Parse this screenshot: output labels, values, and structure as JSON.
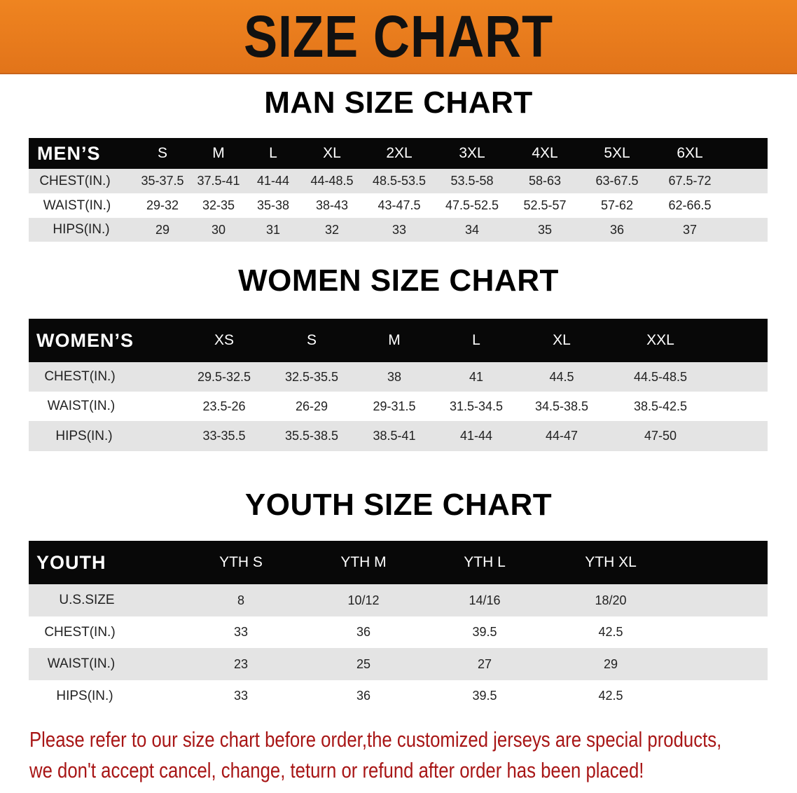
{
  "banner_title": "SIZE CHART",
  "men": {
    "title": "MAN SIZE CHART",
    "header": [
      "MEN’S",
      "S",
      "M",
      "L",
      "XL",
      "2XL",
      "3XL",
      "4XL",
      "5XL",
      "6XL"
    ],
    "rows": [
      [
        "CHEST(IN.)",
        "35-37.5",
        "37.5-41",
        "41-44",
        "44-48.5",
        "48.5-53.5",
        "53.5-58",
        "58-63",
        "63-67.5",
        "67.5-72"
      ],
      [
        "WAIST(IN.)",
        "29-32",
        "32-35",
        "35-38",
        "38-43",
        "43-47.5",
        "47.5-52.5",
        "52.5-57",
        "57-62",
        "62-66.5"
      ],
      [
        "HIPS(IN.)",
        "29",
        "30",
        "31",
        "32",
        "33",
        "34",
        "35",
        "36",
        "37"
      ]
    ]
  },
  "women": {
    "title": "WOMEN SIZE CHART",
    "header": [
      "WOMEN’S",
      "XS",
      "S",
      "M",
      "L",
      "XL",
      "XXL"
    ],
    "rows": [
      [
        "CHEST(IN.)",
        "29.5-32.5",
        "32.5-35.5",
        "38",
        "41",
        "44.5",
        "44.5-48.5"
      ],
      [
        "WAIST(IN.)",
        "23.5-26",
        "26-29",
        "29-31.5",
        "31.5-34.5",
        "34.5-38.5",
        "38.5-42.5"
      ],
      [
        "HIPS(IN.)",
        "33-35.5",
        "35.5-38.5",
        "38.5-41",
        "41-44",
        "44-47",
        "47-50"
      ]
    ]
  },
  "youth": {
    "title": "YOUTH SIZE CHART",
    "header": [
      "YOUTH",
      "YTH S",
      "YTH M",
      "YTH L",
      "YTH XL"
    ],
    "rows": [
      [
        "U.S.SIZE",
        "8",
        "10/12",
        "14/16",
        "18/20"
      ],
      [
        "CHEST(IN.)",
        "33",
        "36",
        "39.5",
        "42.5"
      ],
      [
        "WAIST(IN.)",
        "23",
        "25",
        "27",
        "29"
      ],
      [
        "HIPS(IN.)",
        "33",
        "36",
        "39.5",
        "42.5"
      ]
    ]
  },
  "notice": {
    "line1": "Please refer to our size chart before order,the customized jerseys are special products,",
    "line2": "we don't accept cancel, change, teturn or refund after order has been placed!"
  },
  "colors": {
    "banner": "#e8791d",
    "header_bg": "#080808",
    "stripe": "#e4e4e4",
    "notice": "#a81616"
  }
}
